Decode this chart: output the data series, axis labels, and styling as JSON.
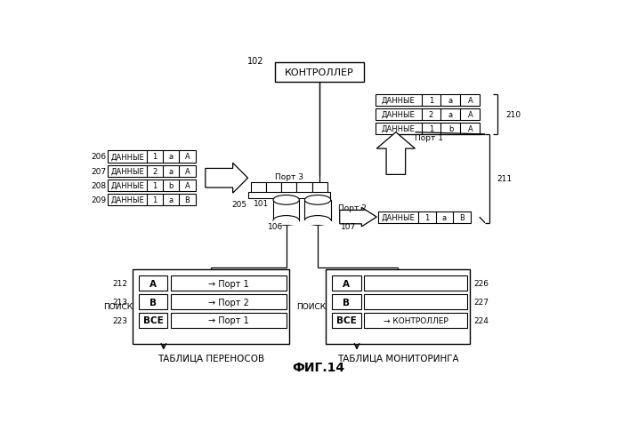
{
  "bg_color": "#ffffff",
  "title": "ФИГ.14",
  "controller_label": "КОНТРОЛЛЕР",
  "label_102": "102",
  "label_101": "101",
  "label_205": "205",
  "label_106": "106",
  "label_107": "107",
  "label_206": "206",
  "label_207": "207",
  "label_208": "208",
  "label_209": "209",
  "label_210": "210",
  "label_211": "211",
  "label_212": "212",
  "label_213": "213",
  "label_223": "223",
  "label_226": "226",
  "label_227": "227",
  "label_224": "224",
  "port3_label": "Порт 3",
  "port1_label": "Порт 1",
  "port2_label": "Порт 2",
  "poisk_label": "ПОИСК",
  "table1_title": "ТАБЛИЦА ПЕРЕНОСОВ",
  "table2_title": "ТАБЛИЦА МОНИТОРИНГА",
  "dannye": "ДАННЫЕ",
  "vse": "ВСЕ",
  "arrow_port1": "→ Порт 1",
  "arrow_port2": "→ Порт 2",
  "arrow_kontroller": "→ КОНТРОЛЛЕР"
}
